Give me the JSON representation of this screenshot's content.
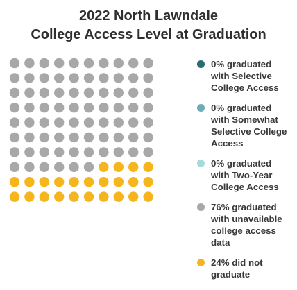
{
  "chart_data": {
    "type": "waffle",
    "title": [
      "2022 North Lawndale",
      "College Access Level at Graduation"
    ],
    "rows": 10,
    "cols": 10,
    "total": 100,
    "series": [
      {
        "name": "0% graduated with Selective College Access",
        "label_lines": [
          "0% graduated",
          "with Selective",
          "College Access"
        ],
        "value": 0,
        "color": "#2a6b78"
      },
      {
        "name": "0% graduated with Somewhat Selective College Access",
        "label_lines": [
          "0% graduated",
          "with Somewhat",
          "Selective College",
          "Access"
        ],
        "value": 0,
        "color": "#6aacb9"
      },
      {
        "name": "0% graduated with Two-Year College Access",
        "label_lines": [
          "0% graduated",
          "with Two-Year",
          "College Access"
        ],
        "value": 0,
        "color": "#a9d8dc"
      },
      {
        "name": "76% graduated with unavailable college access data",
        "label_lines": [
          "76% graduated",
          "with unavailable",
          "college access",
          "data"
        ],
        "value": 76,
        "color": "#a8a8a8"
      },
      {
        "name": "24% did not graduate",
        "label_lines": [
          "24% did not",
          "graduate"
        ],
        "value": 24,
        "color": "#f5b51e"
      }
    ],
    "legend_position": "right"
  }
}
